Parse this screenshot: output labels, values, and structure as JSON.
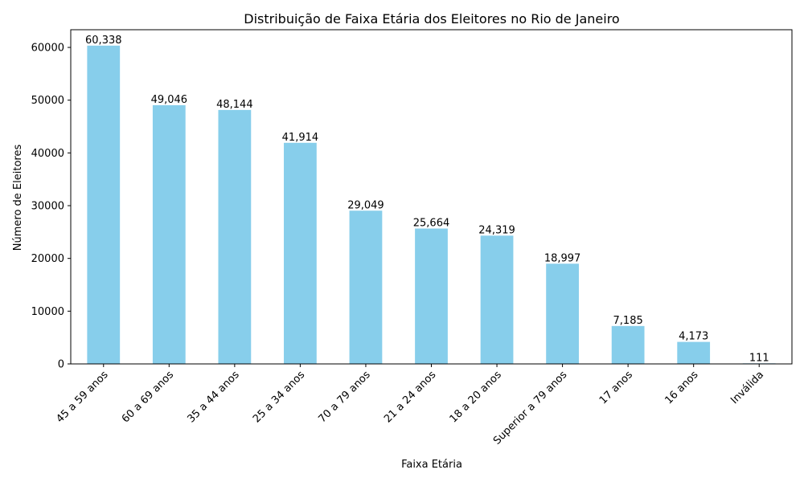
{
  "chart_data": {
    "type": "bar",
    "title": "Distribuição de Faixa Etária dos Eleitores no Rio de Janeiro",
    "xlabel": "Faixa Etária",
    "ylabel": "Número de Eleitores",
    "categories": [
      "45 a 59 anos",
      "60 a 69 anos",
      "35 a 44 anos",
      "25 a 34 anos",
      "70 a 79 anos",
      "21 a 24 anos",
      "18 a 20 anos",
      "Superior a 79 anos",
      "17 anos",
      "16 anos",
      "Inválida"
    ],
    "values": [
      60338,
      49046,
      48144,
      41914,
      29049,
      25664,
      24319,
      18997,
      7185,
      4173,
      111
    ],
    "value_labels": [
      "60,338",
      "49,046",
      "48,144",
      "41,914",
      "29,049",
      "25,664",
      "24,319",
      "18,997",
      "7,185",
      "4,173",
      "111"
    ],
    "yticks": [
      0,
      10000,
      20000,
      30000,
      40000,
      50000,
      60000
    ],
    "ytick_labels": [
      "0",
      "10000",
      "20000",
      "30000",
      "40000",
      "50000",
      "60000"
    ],
    "ylim": [
      0,
      63355
    ],
    "bar_color": "#87ceeb",
    "grid": false,
    "legend": "none"
  }
}
